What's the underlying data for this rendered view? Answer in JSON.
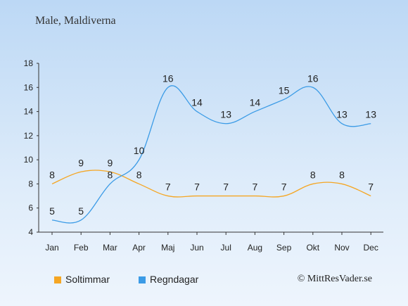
{
  "title": "Male, Maldiverna",
  "credit": "© MittResVader.se",
  "chart_data": {
    "type": "line",
    "categories": [
      "Jan",
      "Feb",
      "Mar",
      "Apr",
      "Maj",
      "Jun",
      "Jul",
      "Aug",
      "Sep",
      "Okt",
      "Nov",
      "Dec"
    ],
    "ylim": [
      4,
      18
    ],
    "yticks": [
      4,
      6,
      8,
      10,
      12,
      14,
      16,
      18
    ],
    "grid": false,
    "legend_position": "bottom",
    "series": [
      {
        "name": "Soltimmar",
        "color": "#f5a623",
        "values": [
          8,
          9,
          9,
          8,
          7,
          7,
          7,
          7,
          7,
          8,
          8,
          7
        ]
      },
      {
        "name": "Regndagar",
        "color": "#3b9be6",
        "values": [
          5,
          5,
          8,
          10,
          16,
          14,
          13,
          14,
          15,
          16,
          13,
          13
        ]
      }
    ]
  }
}
